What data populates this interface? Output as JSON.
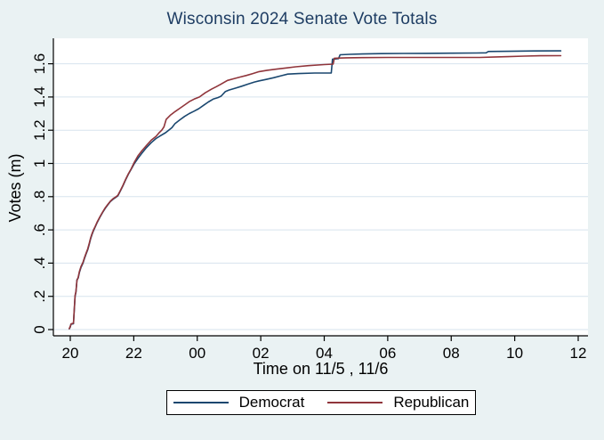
{
  "chart_data": {
    "type": "line",
    "title": "Wisconsin 2024 Senate Vote Totals",
    "xlabel": "Time on 11/5 , 11/6",
    "ylabel": "Votes (m)",
    "grid": "horizontal",
    "legend_position": "bottom-outside",
    "x_unit": "hours after 20:00 (11/5)",
    "xlim": [
      -0.55,
      16.3
    ],
    "ylim": [
      0,
      1.75
    ],
    "x_ticks": [
      {
        "t": 0,
        "label": "20"
      },
      {
        "t": 2,
        "label": "22"
      },
      {
        "t": 4,
        "label": "00"
      },
      {
        "t": 6,
        "label": "02"
      },
      {
        "t": 8,
        "label": "04"
      },
      {
        "t": 10,
        "label": "06"
      },
      {
        "t": 12,
        "label": "08"
      },
      {
        "t": 14,
        "label": "10"
      },
      {
        "t": 16,
        "label": "12"
      }
    ],
    "y_ticks": [
      {
        "v": 0,
        "label": "0"
      },
      {
        "v": 0.2,
        "label": ".2"
      },
      {
        "v": 0.4,
        "label": ".4"
      },
      {
        "v": 0.6,
        "label": ".6"
      },
      {
        "v": 0.8,
        "label": ".8"
      },
      {
        "v": 1.0,
        "label": "1"
      },
      {
        "v": 1.2,
        "label": "1.2"
      },
      {
        "v": 1.4,
        "label": "1.4"
      },
      {
        "v": 1.6,
        "label": "1.6"
      }
    ],
    "series": [
      {
        "name": "Democrat",
        "color": "#1a476f",
        "points": [
          [
            -0.03,
            0.005
          ],
          [
            0.0,
            0.015
          ],
          [
            0.02,
            0.032
          ],
          [
            0.1,
            0.035
          ],
          [
            0.12,
            0.1
          ],
          [
            0.15,
            0.2
          ],
          [
            0.18,
            0.225
          ],
          [
            0.21,
            0.3
          ],
          [
            0.25,
            0.31
          ],
          [
            0.29,
            0.345
          ],
          [
            0.34,
            0.375
          ],
          [
            0.4,
            0.4
          ],
          [
            0.45,
            0.43
          ],
          [
            0.5,
            0.455
          ],
          [
            0.55,
            0.48
          ],
          [
            0.6,
            0.515
          ],
          [
            0.64,
            0.545
          ],
          [
            0.68,
            0.57
          ],
          [
            0.73,
            0.595
          ],
          [
            0.78,
            0.615
          ],
          [
            0.85,
            0.645
          ],
          [
            0.93,
            0.675
          ],
          [
            1.02,
            0.705
          ],
          [
            1.1,
            0.73
          ],
          [
            1.18,
            0.75
          ],
          [
            1.26,
            0.77
          ],
          [
            1.35,
            0.785
          ],
          [
            1.43,
            0.795
          ],
          [
            1.5,
            0.805
          ],
          [
            1.58,
            0.835
          ],
          [
            1.66,
            0.865
          ],
          [
            1.74,
            0.9
          ],
          [
            1.83,
            0.935
          ],
          [
            1.92,
            0.965
          ],
          [
            2.02,
            1.0
          ],
          [
            2.13,
            1.03
          ],
          [
            2.25,
            1.06
          ],
          [
            2.4,
            1.095
          ],
          [
            2.55,
            1.125
          ],
          [
            2.7,
            1.15
          ],
          [
            2.85,
            1.168
          ],
          [
            3.0,
            1.185
          ],
          [
            3.1,
            1.2
          ],
          [
            3.2,
            1.215
          ],
          [
            3.3,
            1.24
          ],
          [
            3.45,
            1.262
          ],
          [
            3.6,
            1.283
          ],
          [
            3.75,
            1.3
          ],
          [
            3.9,
            1.315
          ],
          [
            4.05,
            1.33
          ],
          [
            4.2,
            1.35
          ],
          [
            4.35,
            1.37
          ],
          [
            4.5,
            1.387
          ],
          [
            4.65,
            1.396
          ],
          [
            4.75,
            1.405
          ],
          [
            4.88,
            1.432
          ],
          [
            5.0,
            1.442
          ],
          [
            5.2,
            1.453
          ],
          [
            5.4,
            1.465
          ],
          [
            5.6,
            1.478
          ],
          [
            5.8,
            1.49
          ],
          [
            5.95,
            1.497
          ],
          [
            6.15,
            1.505
          ],
          [
            6.4,
            1.516
          ],
          [
            6.65,
            1.528
          ],
          [
            6.85,
            1.538
          ],
          [
            7.2,
            1.541
          ],
          [
            7.7,
            1.544
          ],
          [
            8.22,
            1.545
          ],
          [
            8.26,
            1.628
          ],
          [
            8.45,
            1.631
          ],
          [
            8.5,
            1.654
          ],
          [
            8.8,
            1.657
          ],
          [
            9.2,
            1.659
          ],
          [
            9.8,
            1.661
          ],
          [
            10.5,
            1.662
          ],
          [
            11.2,
            1.663
          ],
          [
            12.0,
            1.664
          ],
          [
            12.8,
            1.665
          ],
          [
            13.1,
            1.666
          ],
          [
            13.17,
            1.674
          ],
          [
            13.8,
            1.675
          ],
          [
            14.6,
            1.677
          ],
          [
            15.45,
            1.678
          ]
        ]
      },
      {
        "name": "Republican",
        "color": "#90353b",
        "points": [
          [
            -0.03,
            0.005
          ],
          [
            0.0,
            0.02
          ],
          [
            0.03,
            0.035
          ],
          [
            0.1,
            0.038
          ],
          [
            0.12,
            0.105
          ],
          [
            0.15,
            0.205
          ],
          [
            0.18,
            0.23
          ],
          [
            0.21,
            0.295
          ],
          [
            0.25,
            0.315
          ],
          [
            0.29,
            0.35
          ],
          [
            0.34,
            0.38
          ],
          [
            0.4,
            0.405
          ],
          [
            0.45,
            0.435
          ],
          [
            0.5,
            0.46
          ],
          [
            0.55,
            0.485
          ],
          [
            0.6,
            0.52
          ],
          [
            0.64,
            0.55
          ],
          [
            0.68,
            0.575
          ],
          [
            0.73,
            0.6
          ],
          [
            0.78,
            0.618
          ],
          [
            0.85,
            0.648
          ],
          [
            0.93,
            0.678
          ],
          [
            1.02,
            0.708
          ],
          [
            1.1,
            0.733
          ],
          [
            1.18,
            0.753
          ],
          [
            1.26,
            0.772
          ],
          [
            1.35,
            0.788
          ],
          [
            1.43,
            0.798
          ],
          [
            1.5,
            0.808
          ],
          [
            1.58,
            0.838
          ],
          [
            1.66,
            0.868
          ],
          [
            1.74,
            0.903
          ],
          [
            1.83,
            0.938
          ],
          [
            1.92,
            0.968
          ],
          [
            2.02,
            1.008
          ],
          [
            2.13,
            1.045
          ],
          [
            2.25,
            1.075
          ],
          [
            2.4,
            1.108
          ],
          [
            2.55,
            1.14
          ],
          [
            2.7,
            1.163
          ],
          [
            2.8,
            1.185
          ],
          [
            2.88,
            1.2
          ],
          [
            2.95,
            1.22
          ],
          [
            3.02,
            1.265
          ],
          [
            3.15,
            1.29
          ],
          [
            3.3,
            1.312
          ],
          [
            3.45,
            1.332
          ],
          [
            3.6,
            1.352
          ],
          [
            3.75,
            1.372
          ],
          [
            3.9,
            1.387
          ],
          [
            4.07,
            1.4
          ],
          [
            4.25,
            1.425
          ],
          [
            4.45,
            1.447
          ],
          [
            4.6,
            1.462
          ],
          [
            4.75,
            1.478
          ],
          [
            4.95,
            1.5
          ],
          [
            5.15,
            1.51
          ],
          [
            5.35,
            1.52
          ],
          [
            5.55,
            1.53
          ],
          [
            5.75,
            1.541
          ],
          [
            5.95,
            1.553
          ],
          [
            6.2,
            1.561
          ],
          [
            6.5,
            1.568
          ],
          [
            6.8,
            1.575
          ],
          [
            7.1,
            1.582
          ],
          [
            7.5,
            1.589
          ],
          [
            8.0,
            1.595
          ],
          [
            8.28,
            1.598
          ],
          [
            8.32,
            1.633
          ],
          [
            8.7,
            1.636
          ],
          [
            9.2,
            1.637
          ],
          [
            10.0,
            1.638
          ],
          [
            11.0,
            1.638
          ],
          [
            12.0,
            1.638
          ],
          [
            12.9,
            1.638
          ],
          [
            13.3,
            1.64
          ],
          [
            13.8,
            1.643
          ],
          [
            14.3,
            1.646
          ],
          [
            14.8,
            1.648
          ],
          [
            15.45,
            1.649
          ]
        ]
      }
    ]
  },
  "theme": {
    "background": "#eaf2f3",
    "plot_background": "#ffffff",
    "gridline": "#d7e3ee",
    "axis": "#000000",
    "tick_label_color": "#000000",
    "title_color": "#1e3d63",
    "legend_border": "#000000",
    "legend_background": "#ffffff"
  }
}
